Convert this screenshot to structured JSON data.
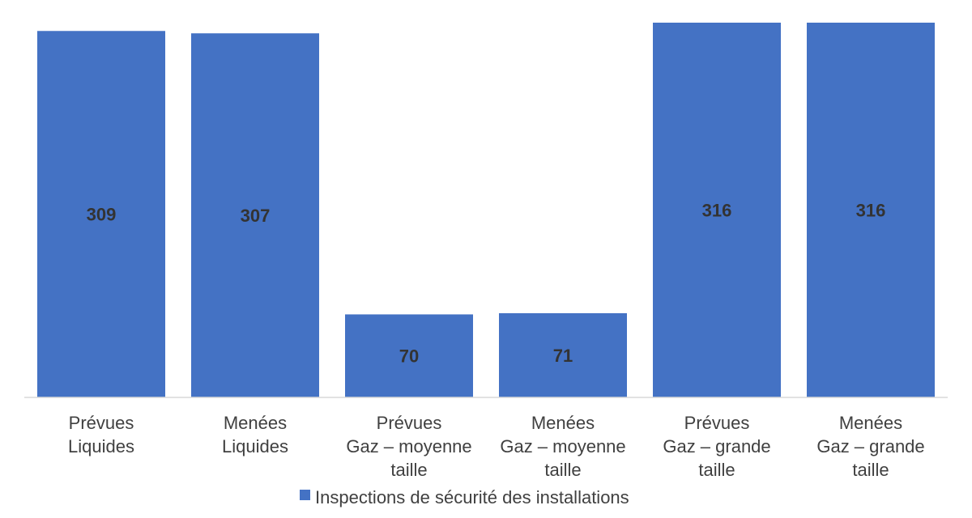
{
  "chart_data": {
    "type": "bar",
    "categories": [
      [
        "Prévues",
        "Liquides"
      ],
      [
        "Menées",
        "Liquides"
      ],
      [
        "Prévues",
        "Gaz – moyenne",
        "taille"
      ],
      [
        "Menées",
        "Gaz – moyenne",
        "taille"
      ],
      [
        "Prévues",
        "Gaz – grande",
        "taille"
      ],
      [
        "Menées",
        "Gaz – grande",
        "taille"
      ]
    ],
    "series": [
      {
        "name": "Inspections de sécurité des installations",
        "values": [
          309,
          307,
          70,
          71,
          316,
          316
        ],
        "color": "#4472C4"
      }
    ],
    "data_labels": [
      "309",
      "307",
      "70",
      "71",
      "316",
      "316"
    ],
    "ylim": [
      0,
      316
    ],
    "grid": false,
    "legend": "bottom"
  }
}
